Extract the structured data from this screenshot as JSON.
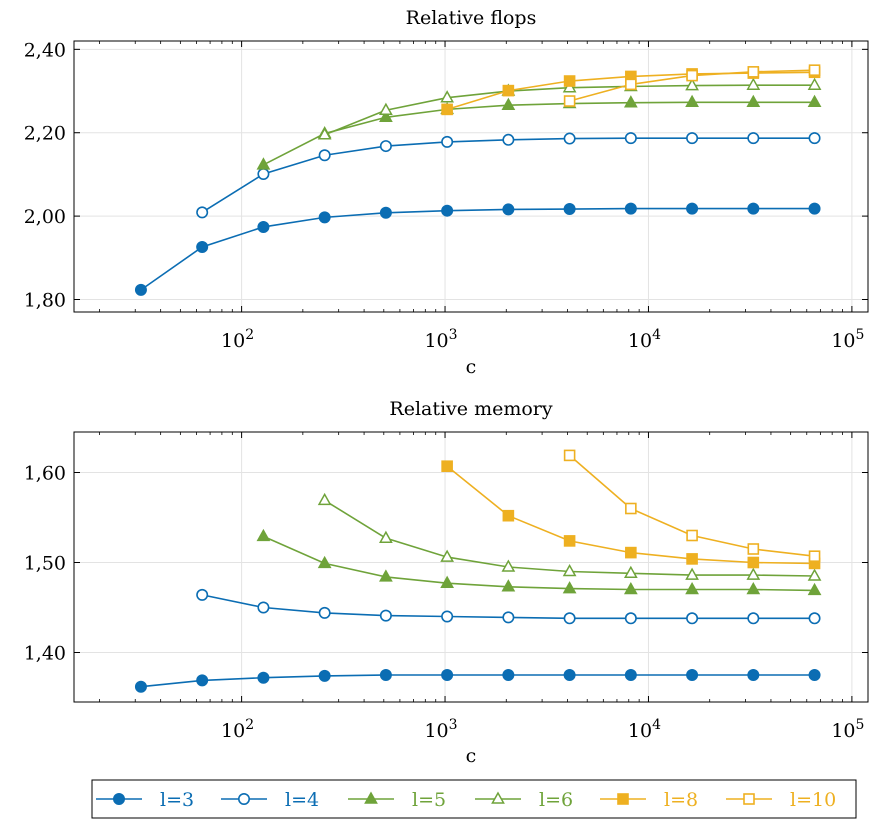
{
  "chart_data": [
    {
      "type": "line",
      "title": "Relative flops",
      "xlabel": "c",
      "ylabel": "",
      "xscale": "log",
      "xlim": [
        15,
        120000
      ],
      "ylim": [
        1.77,
        2.42
      ],
      "yticks": [
        1.8,
        2.0,
        2.2,
        2.4
      ],
      "ytick_labels": [
        "1,80",
        "2,00",
        "2,20",
        "2,40"
      ],
      "xticks": [
        100,
        1000,
        10000,
        100000
      ],
      "xtick_labels": [
        {
          "base": "10",
          "exp": "2"
        },
        {
          "base": "10",
          "exp": "3"
        },
        {
          "base": "10",
          "exp": "4"
        },
        {
          "base": "10",
          "exp": "5"
        }
      ],
      "grid": true,
      "series": [
        {
          "name": "l=3",
          "color": "#0b6db3",
          "marker": "circle",
          "filled": true,
          "x": [
            32,
            64,
            128,
            256,
            512,
            1024,
            2048,
            4096,
            8192,
            16384,
            32768,
            65536
          ],
          "y": [
            1.823,
            1.926,
            1.974,
            1.997,
            2.008,
            2.013,
            2.016,
            2.017,
            2.018,
            2.018,
            2.018,
            2.018
          ]
        },
        {
          "name": "l=4",
          "color": "#0b6db3",
          "marker": "circle",
          "filled": false,
          "x": [
            64,
            128,
            256,
            512,
            1024,
            2048,
            4096,
            8192,
            16384,
            32768,
            65536
          ],
          "y": [
            2.009,
            2.101,
            2.146,
            2.168,
            2.178,
            2.183,
            2.186,
            2.187,
            2.187,
            2.187,
            2.187
          ]
        },
        {
          "name": "l=5",
          "color": "#6fa33a",
          "marker": "triangle",
          "filled": true,
          "x": [
            128,
            256,
            512,
            1024,
            2048,
            4096,
            8192,
            16384,
            32768,
            65536
          ],
          "y": [
            2.123,
            2.198,
            2.237,
            2.256,
            2.266,
            2.27,
            2.272,
            2.273,
            2.273,
            2.273
          ]
        },
        {
          "name": "l=6",
          "color": "#6fa33a",
          "marker": "triangle",
          "filled": false,
          "x": [
            256,
            512,
            1024,
            2048,
            4096,
            8192,
            16384,
            32768,
            65536
          ],
          "y": [
            2.195,
            2.254,
            2.284,
            2.3,
            2.308,
            2.311,
            2.313,
            2.314,
            2.314
          ]
        },
        {
          "name": "l=8",
          "color": "#eeb021",
          "marker": "square",
          "filled": true,
          "x": [
            1024,
            2048,
            4096,
            8192,
            16384,
            32768,
            65536
          ],
          "y": [
            2.256,
            2.301,
            2.324,
            2.335,
            2.341,
            2.343,
            2.345
          ]
        },
        {
          "name": "l=10",
          "color": "#eeb021",
          "marker": "square",
          "filled": false,
          "x": [
            4096,
            8192,
            16384,
            32768,
            65536
          ],
          "y": [
            2.276,
            2.316,
            2.337,
            2.346,
            2.35
          ]
        }
      ]
    },
    {
      "type": "line",
      "title": "Relative memory",
      "xlabel": "c",
      "ylabel": "",
      "xscale": "log",
      "xlim": [
        15,
        120000
      ],
      "ylim": [
        1.345,
        1.645
      ],
      "yticks": [
        1.4,
        1.5,
        1.6
      ],
      "ytick_labels": [
        "1,40",
        "1,50",
        "1,60"
      ],
      "xticks": [
        100,
        1000,
        10000,
        100000
      ],
      "xtick_labels": [
        {
          "base": "10",
          "exp": "2"
        },
        {
          "base": "10",
          "exp": "3"
        },
        {
          "base": "10",
          "exp": "4"
        },
        {
          "base": "10",
          "exp": "5"
        }
      ],
      "grid": true,
      "series": [
        {
          "name": "l=3",
          "color": "#0b6db3",
          "marker": "circle",
          "filled": true,
          "x": [
            32,
            64,
            128,
            256,
            512,
            1024,
            2048,
            4096,
            8192,
            16384,
            32768,
            65536
          ],
          "y": [
            1.362,
            1.369,
            1.372,
            1.374,
            1.375,
            1.375,
            1.375,
            1.375,
            1.375,
            1.375,
            1.375,
            1.375
          ]
        },
        {
          "name": "l=4",
          "color": "#0b6db3",
          "marker": "circle",
          "filled": false,
          "x": [
            64,
            128,
            256,
            512,
            1024,
            2048,
            4096,
            8192,
            16384,
            32768,
            65536
          ],
          "y": [
            1.464,
            1.45,
            1.444,
            1.441,
            1.44,
            1.439,
            1.438,
            1.438,
            1.438,
            1.438,
            1.438
          ]
        },
        {
          "name": "l=5",
          "color": "#6fa33a",
          "marker": "triangle",
          "filled": true,
          "x": [
            128,
            256,
            512,
            1024,
            2048,
            4096,
            8192,
            16384,
            32768,
            65536
          ],
          "y": [
            1.529,
            1.499,
            1.484,
            1.477,
            1.473,
            1.471,
            1.47,
            1.47,
            1.47,
            1.469
          ]
        },
        {
          "name": "l=6",
          "color": "#6fa33a",
          "marker": "triangle",
          "filled": false,
          "x": [
            256,
            512,
            1024,
            2048,
            4096,
            8192,
            16384,
            32768,
            65536
          ],
          "y": [
            1.569,
            1.527,
            1.506,
            1.495,
            1.49,
            1.488,
            1.486,
            1.486,
            1.485
          ]
        },
        {
          "name": "l=8",
          "color": "#eeb021",
          "marker": "square",
          "filled": true,
          "x": [
            1024,
            2048,
            4096,
            8192,
            16384,
            32768,
            65536
          ],
          "y": [
            1.607,
            1.552,
            1.524,
            1.511,
            1.504,
            1.5,
            1.499
          ]
        },
        {
          "name": "l=10",
          "color": "#eeb021",
          "marker": "square",
          "filled": false,
          "x": [
            4096,
            8192,
            16384,
            32768,
            65536
          ],
          "y": [
            1.619,
            1.56,
            1.53,
            1.515,
            1.507
          ]
        }
      ]
    }
  ],
  "legend": {
    "placement": "bottom",
    "entries": [
      "l=3",
      "l=4",
      "l=5",
      "l=6",
      "l=8",
      "l=10"
    ]
  }
}
